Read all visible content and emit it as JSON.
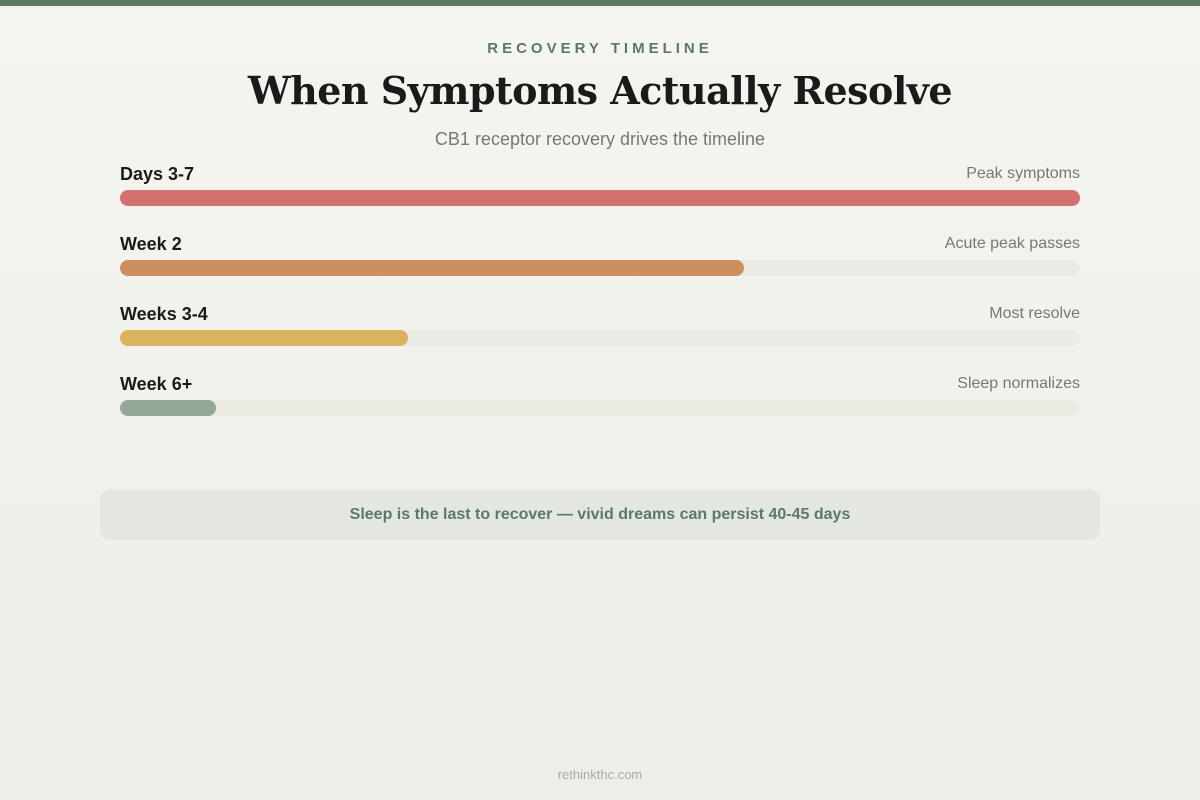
{
  "header": {
    "eyebrow": "RECOVERY TIMELINE",
    "title": "When Symptoms Actually Resolve",
    "subtitle": "CB1 receptor recovery drives the timeline"
  },
  "colors": {
    "accent": "#5a7a64",
    "track": "#ebeae3"
  },
  "chart_data": {
    "type": "bar",
    "orientation": "horizontal",
    "title": "When Symptoms Actually Resolve",
    "categories": [
      "Days 3-7",
      "Week 2",
      "Weeks 3-4",
      "Week 6+"
    ],
    "notes": [
      "Peak symptoms",
      "Acute peak passes",
      "Most resolve",
      "Sleep normalizes"
    ],
    "values": [
      100,
      65,
      30,
      10
    ],
    "unit": "relative symptom intensity (%)",
    "colors": [
      "#d4706e",
      "#cd8f5e",
      "#dbb35f",
      "#94a898"
    ],
    "xlim": [
      0,
      100
    ],
    "grid": false
  },
  "callout": "Sleep is the last to recover — vivid dreams can persist 40-45 days",
  "footer": "rethinkthc.com"
}
